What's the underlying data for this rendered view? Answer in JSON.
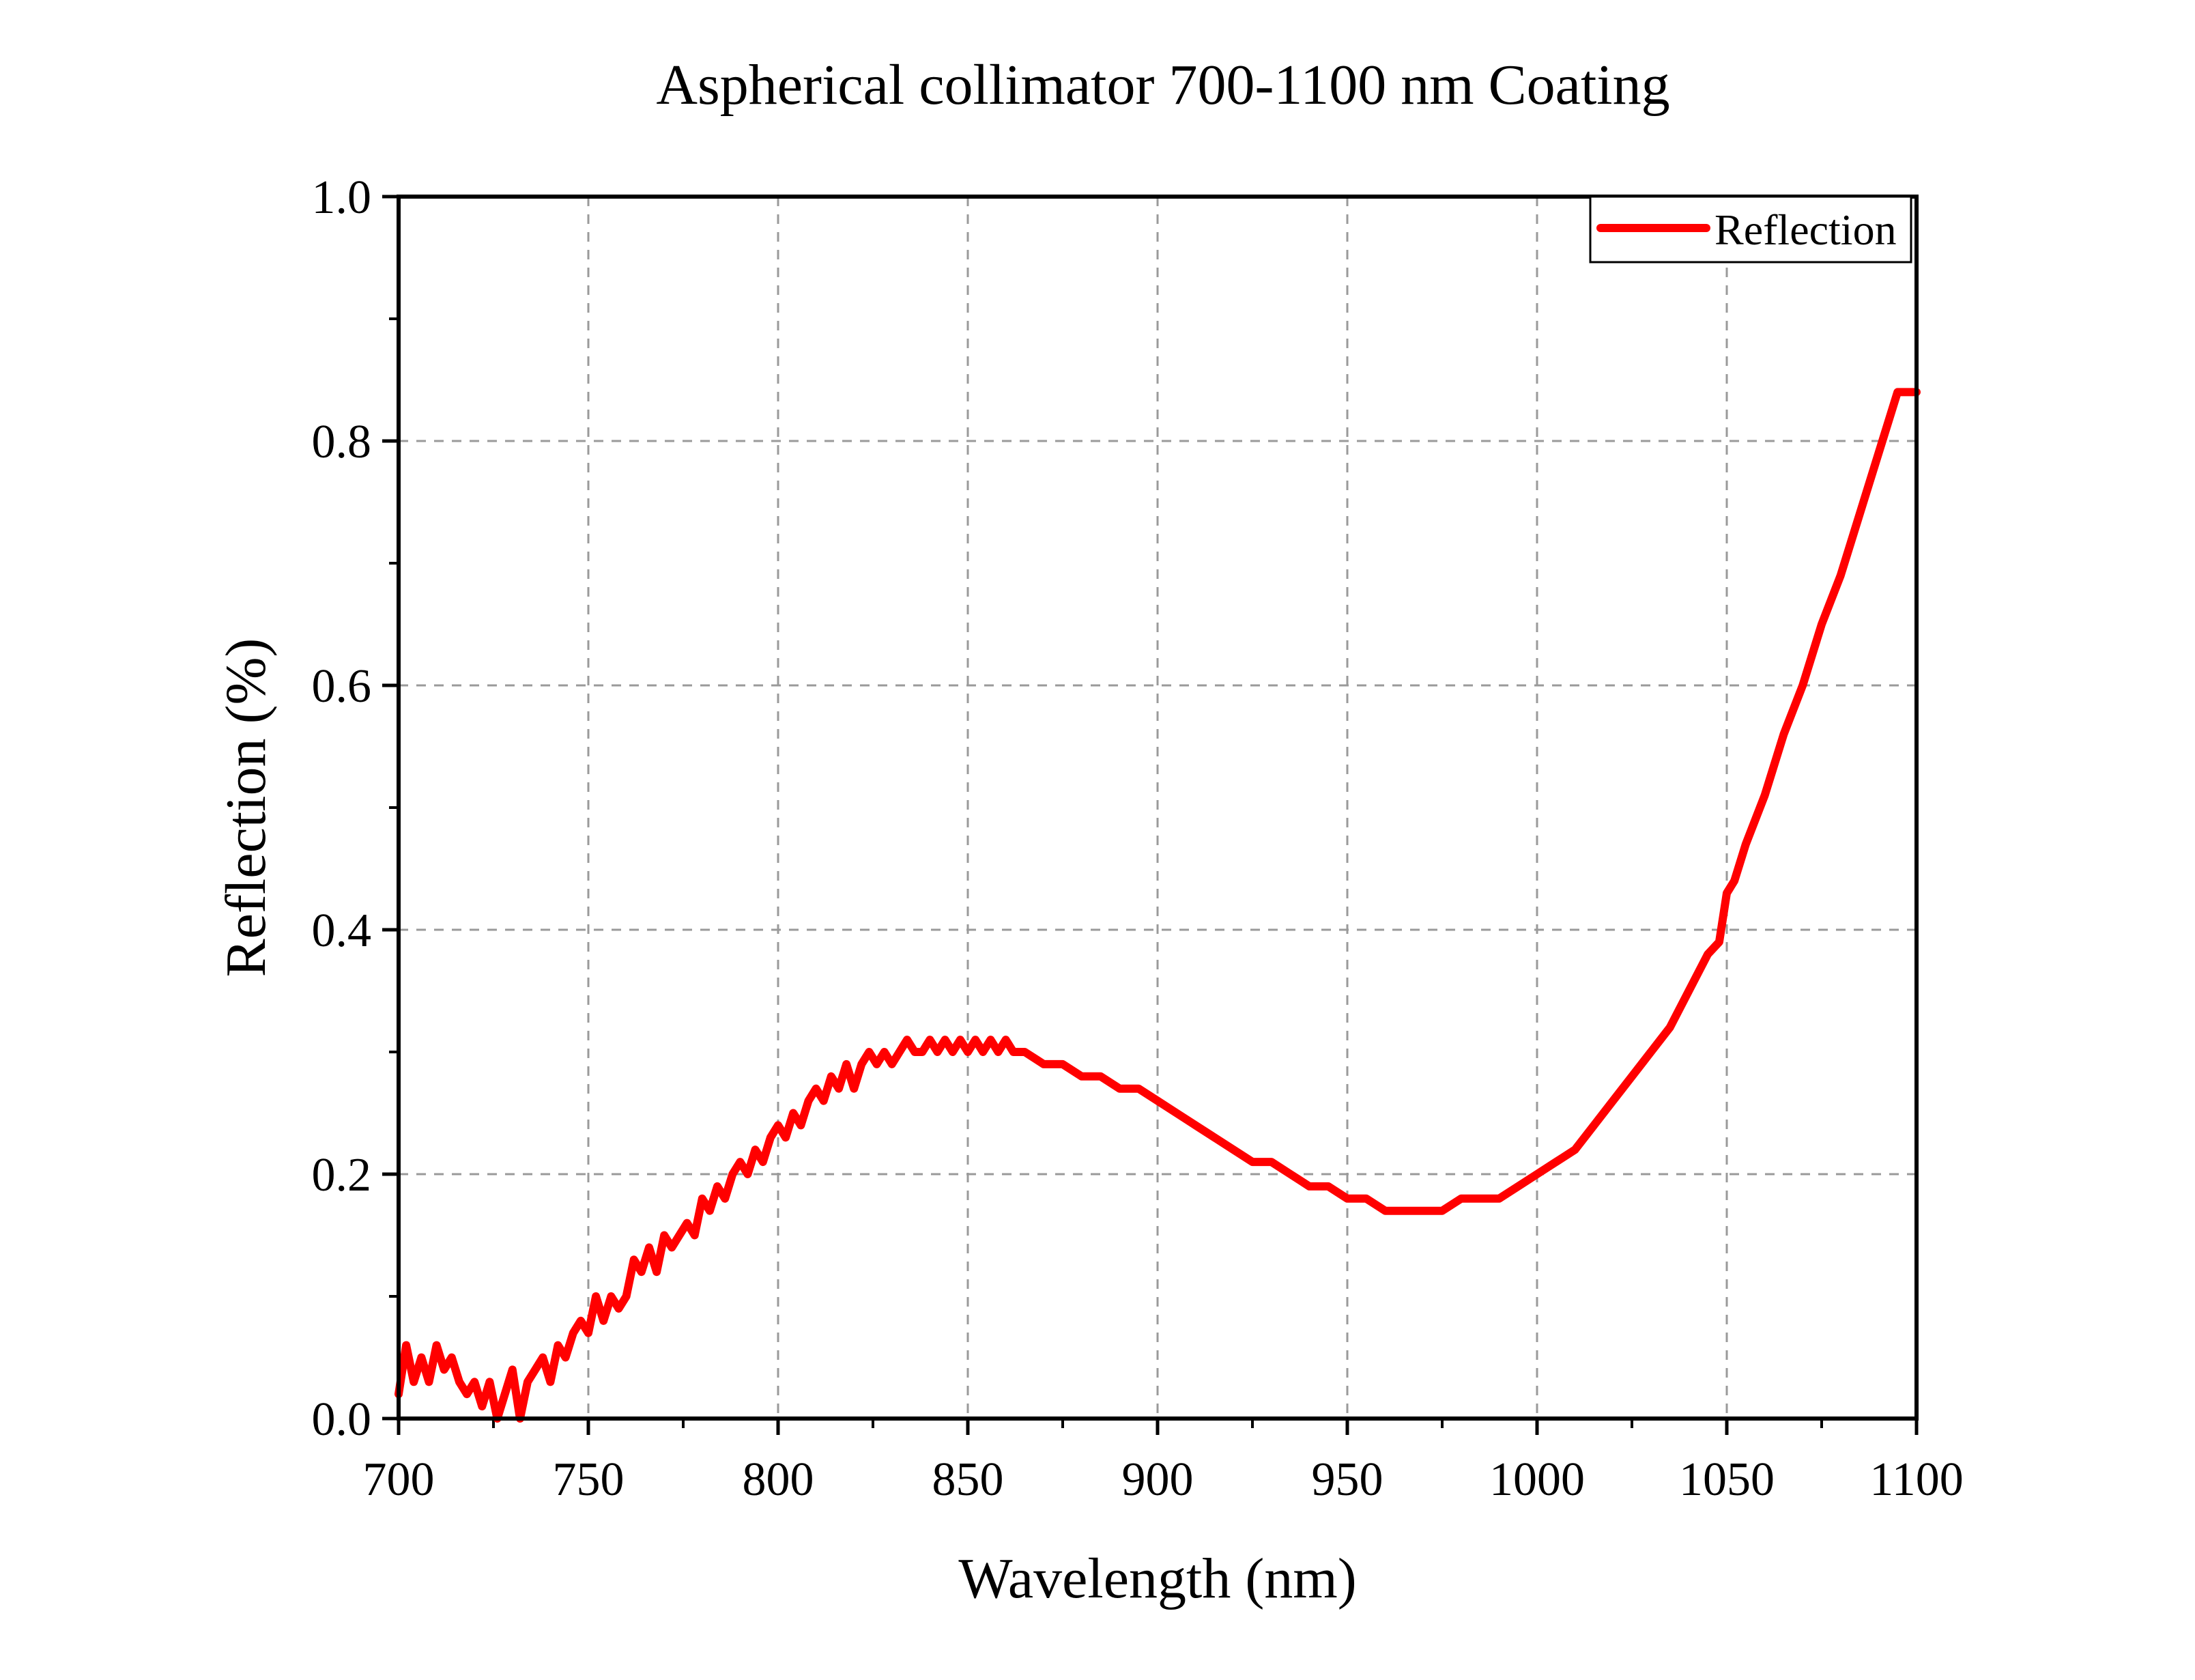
{
  "chart_data": {
    "type": "line",
    "title": "Aspherical collimator 700-1100 nm Coating",
    "xlabel": "Wavelength (nm)",
    "ylabel": "Reflection (%)",
    "xlim": [
      700,
      1100
    ],
    "ylim": [
      0,
      1.0
    ],
    "x_ticks": [
      "700",
      "750",
      "800",
      "850",
      "900",
      "950",
      "1000",
      "1050",
      "1100"
    ],
    "y_ticks": [
      "0.0",
      "0.2",
      "0.4",
      "0.6",
      "0.8",
      "1.0"
    ],
    "grid": true,
    "legend_position": "top-right",
    "series": [
      {
        "name": "Reflection",
        "color": "#ff0000",
        "x": [
          700,
          702,
          704,
          706,
          708,
          710,
          712,
          714,
          716,
          718,
          720,
          722,
          724,
          726,
          728,
          730,
          732,
          734,
          736,
          738,
          740,
          742,
          744,
          746,
          748,
          750,
          752,
          754,
          756,
          758,
          760,
          762,
          764,
          766,
          768,
          770,
          772,
          774,
          776,
          778,
          780,
          782,
          784,
          786,
          788,
          790,
          792,
          794,
          796,
          798,
          800,
          802,
          804,
          806,
          808,
          810,
          812,
          814,
          816,
          818,
          820,
          822,
          824,
          826,
          828,
          830,
          832,
          834,
          836,
          838,
          840,
          842,
          844,
          846,
          848,
          850,
          852,
          854,
          856,
          858,
          860,
          862,
          865,
          870,
          875,
          880,
          885,
          890,
          895,
          900,
          905,
          910,
          915,
          920,
          925,
          930,
          935,
          940,
          945,
          950,
          955,
          960,
          965,
          970,
          975,
          980,
          985,
          990,
          995,
          1000,
          1005,
          1010,
          1015,
          1020,
          1025,
          1030,
          1035,
          1040,
          1045,
          1048,
          1050,
          1052,
          1055,
          1060,
          1065,
          1070,
          1075,
          1080,
          1085,
          1090,
          1095,
          1100
        ],
        "y": [
          0.02,
          0.06,
          0.03,
          0.05,
          0.03,
          0.06,
          0.04,
          0.05,
          0.03,
          0.02,
          0.03,
          0.01,
          0.03,
          0.0,
          0.02,
          0.04,
          0.0,
          0.03,
          0.04,
          0.05,
          0.03,
          0.06,
          0.05,
          0.07,
          0.08,
          0.07,
          0.1,
          0.08,
          0.1,
          0.09,
          0.1,
          0.13,
          0.12,
          0.14,
          0.12,
          0.15,
          0.14,
          0.15,
          0.16,
          0.15,
          0.18,
          0.17,
          0.19,
          0.18,
          0.2,
          0.21,
          0.2,
          0.22,
          0.21,
          0.23,
          0.24,
          0.23,
          0.25,
          0.24,
          0.26,
          0.27,
          0.26,
          0.28,
          0.27,
          0.29,
          0.27,
          0.29,
          0.3,
          0.29,
          0.3,
          0.29,
          0.3,
          0.31,
          0.3,
          0.3,
          0.31,
          0.3,
          0.31,
          0.3,
          0.31,
          0.3,
          0.31,
          0.3,
          0.31,
          0.3,
          0.31,
          0.3,
          0.3,
          0.29,
          0.29,
          0.28,
          0.28,
          0.27,
          0.27,
          0.26,
          0.25,
          0.24,
          0.23,
          0.22,
          0.21,
          0.21,
          0.2,
          0.19,
          0.19,
          0.18,
          0.18,
          0.17,
          0.17,
          0.17,
          0.17,
          0.18,
          0.18,
          0.18,
          0.19,
          0.2,
          0.21,
          0.22,
          0.24,
          0.26,
          0.28,
          0.3,
          0.32,
          0.35,
          0.38,
          0.39,
          0.43,
          0.44,
          0.47,
          0.51,
          0.56,
          0.6,
          0.65,
          0.69,
          0.74,
          0.79,
          0.84,
          0.84
        ]
      }
    ]
  }
}
